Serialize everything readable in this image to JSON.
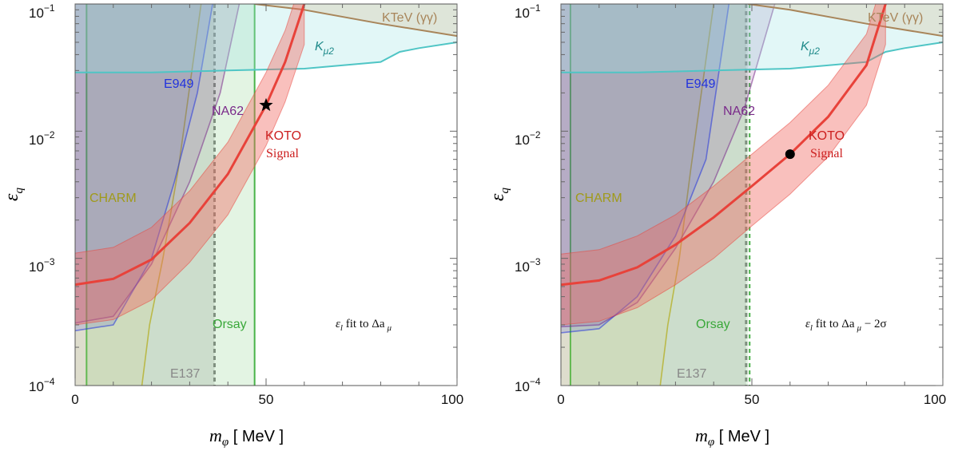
{
  "chart_data": [
    {
      "type": "area",
      "panel": "left",
      "xlabel": "m_φ [ MeV ]",
      "ylabel": "ε_q",
      "xlim": [
        0,
        100
      ],
      "ylim": [
        0.0001,
        0.1
      ],
      "yscale": "log",
      "x_ticks": [
        "0",
        "50",
        "100"
      ],
      "y_ticks": [
        "10^-4",
        "10^-3",
        "10^-2",
        "10^-1"
      ],
      "grid": false,
      "annotation": "ε_l fit to Δa_μ",
      "marker": {
        "shape": "star",
        "x": 50,
        "y": 0.016
      },
      "series": [
        {
          "name": "KOTO Signal",
          "color": "#e8423a",
          "x": [
            0,
            10,
            20,
            30,
            40,
            50,
            55,
            60
          ],
          "center": [
            0.00062,
            0.00069,
            0.00098,
            0.0019,
            0.0046,
            0.016,
            0.035,
            0.1
          ],
          "lower": [
            0.0003,
            0.00033,
            0.00047,
            0.00093,
            0.0022,
            0.0077,
            0.017,
            0.048
          ],
          "upper": [
            0.0011,
            0.00122,
            0.00175,
            0.0034,
            0.0082,
            0.029,
            0.062,
            0.18
          ]
        },
        {
          "name": "CHARM",
          "color": "#b5b02a",
          "x": [
            0,
            3,
            19.5
          ],
          "lower_cut": [
            0.0001,
            0.1,
            0.1
          ],
          "right_edge_x": [
            17.5,
            19.5,
            23,
            27,
            33
          ],
          "right_edge_y": [
            0.0001,
            0.0003,
            0.001,
            0.005,
            0.1
          ]
        },
        {
          "name": "E949",
          "color": "#2233dd",
          "boundary_x": [
            0,
            10,
            20,
            26,
            32,
            36
          ],
          "boundary_y": [
            0.00027,
            0.0003,
            0.001,
            0.004,
            0.02,
            0.1
          ]
        },
        {
          "name": "NA62",
          "color": "#7a2a8a",
          "boundary_x": [
            0,
            10,
            20,
            30,
            38,
            43
          ],
          "boundary_y": [
            0.00031,
            0.00035,
            0.0009,
            0.004,
            0.02,
            0.1
          ]
        },
        {
          "name": "K_μ2",
          "color": "#4fc5c5",
          "x": [
            0,
            20,
            40,
            60,
            80,
            85,
            90,
            100
          ],
          "y": [
            0.029,
            0.029,
            0.03,
            0.031,
            0.035,
            0.042,
            0.045,
            0.05
          ]
        },
        {
          "name": "KTeV (γγ)",
          "color": "#a8855a",
          "x": [
            47,
            60,
            80,
            100
          ],
          "y": [
            0.1,
            0.09,
            0.07,
            0.056
          ]
        },
        {
          "name": "Orsay",
          "color": "#49b349",
          "x_min": 3,
          "x_max": 47
        },
        {
          "name": "E137",
          "color": "#999999",
          "x_max": 36.5
        }
      ]
    },
    {
      "type": "area",
      "panel": "right",
      "xlabel": "m_φ [ MeV ]",
      "ylabel": "ε_q",
      "xlim": [
        0,
        100
      ],
      "ylim": [
        0.0001,
        0.1
      ],
      "yscale": "log",
      "x_ticks": [
        "0",
        "50",
        "100"
      ],
      "y_ticks": [
        "10^-4",
        "10^-3",
        "10^-2",
        "10^-1"
      ],
      "grid": false,
      "annotation": "ε_l fit to Δa_μ − 2σ",
      "marker": {
        "shape": "dot",
        "x": 60,
        "y": 0.0066
      },
      "series": [
        {
          "name": "KOTO Signal",
          "color": "#e8423a",
          "x": [
            0,
            10,
            20,
            30,
            40,
            50,
            60,
            70,
            80,
            85
          ],
          "center": [
            0.00062,
            0.00067,
            0.00085,
            0.00128,
            0.0021,
            0.0037,
            0.0066,
            0.013,
            0.033,
            0.1
          ],
          "lower": [
            0.0003,
            0.00032,
            0.00041,
            0.00062,
            0.001,
            0.0018,
            0.0032,
            0.0063,
            0.016,
            0.048
          ],
          "upper": [
            0.00108,
            0.00117,
            0.0015,
            0.0022,
            0.0037,
            0.0066,
            0.0117,
            0.023,
            0.058,
            0.18
          ]
        },
        {
          "name": "CHARM",
          "color": "#b5b02a",
          "x_min": 3,
          "right_edge_x": [
            26,
            28,
            31,
            34,
            40
          ],
          "right_edge_y": [
            0.0001,
            0.0003,
            0.001,
            0.005,
            0.1
          ]
        },
        {
          "name": "E949",
          "color": "#2233dd",
          "boundary_x": [
            0,
            10,
            20,
            30,
            38,
            44
          ],
          "boundary_y": [
            0.00026,
            0.00028,
            0.0005,
            0.0015,
            0.006,
            0.1
          ]
        },
        {
          "name": "NA62",
          "color": "#7a2a8a",
          "boundary_x": [
            0,
            10,
            20,
            30,
            40,
            48,
            56
          ],
          "boundary_y": [
            0.00029,
            0.0003,
            0.00045,
            0.0012,
            0.004,
            0.015,
            0.1
          ]
        },
        {
          "name": "K_μ2",
          "color": "#4fc5c5",
          "x": [
            0,
            20,
            40,
            60,
            80,
            85,
            90,
            100
          ],
          "y": [
            0.029,
            0.029,
            0.03,
            0.031,
            0.035,
            0.042,
            0.045,
            0.05
          ]
        },
        {
          "name": "KTeV (γγ)",
          "color": "#a8855a",
          "x": [
            49,
            60,
            80,
            100
          ],
          "y": [
            0.1,
            0.09,
            0.07,
            0.056
          ]
        },
        {
          "name": "Orsay",
          "color": "#49b349",
          "x_min": 2.5,
          "x_max": 49
        },
        {
          "name": "E137",
          "color": "#999999",
          "x_max": 48.5
        }
      ]
    }
  ],
  "labels": {
    "left": {
      "ktev": "KTeV (γγ)",
      "kmu2_k": "K",
      "kmu2_sub": "μ2",
      "e949": "E949",
      "na62": "NA62",
      "koto": "KOTO",
      "signal": "Signal",
      "charm": "CHARM",
      "orsay": "Orsay",
      "e137": "E137",
      "annotation_eps": "ε",
      "annotation_eps_sub": "l",
      "annotation_rest": " fit to Δa",
      "annotation_mu": "μ",
      "annotation_tail": ""
    },
    "right": {
      "ktev": "KTeV (γγ)",
      "kmu2_k": "K",
      "kmu2_sub": "μ2",
      "e949": "E949",
      "na62": "NA62",
      "koto": "KOTO",
      "signal": "Signal",
      "charm": "CHARM",
      "orsay": "Orsay",
      "e137": "E137",
      "annotation_eps": "ε",
      "annotation_eps_sub": "l",
      "annotation_rest": " fit to Δa",
      "annotation_mu": "μ",
      "annotation_tail": " − 2σ"
    },
    "axes": {
      "x_m": "m",
      "x_phi": "φ",
      "x_unit": " [ MeV ]",
      "y_eps": "ε",
      "y_q": "q",
      "tick_x0": "0",
      "tick_x50": "50",
      "tick_x100": "100",
      "tick_base": "10",
      "tick_e4": "−4",
      "tick_e3": "−3",
      "tick_e2": "−2",
      "tick_e1": "−1"
    }
  }
}
